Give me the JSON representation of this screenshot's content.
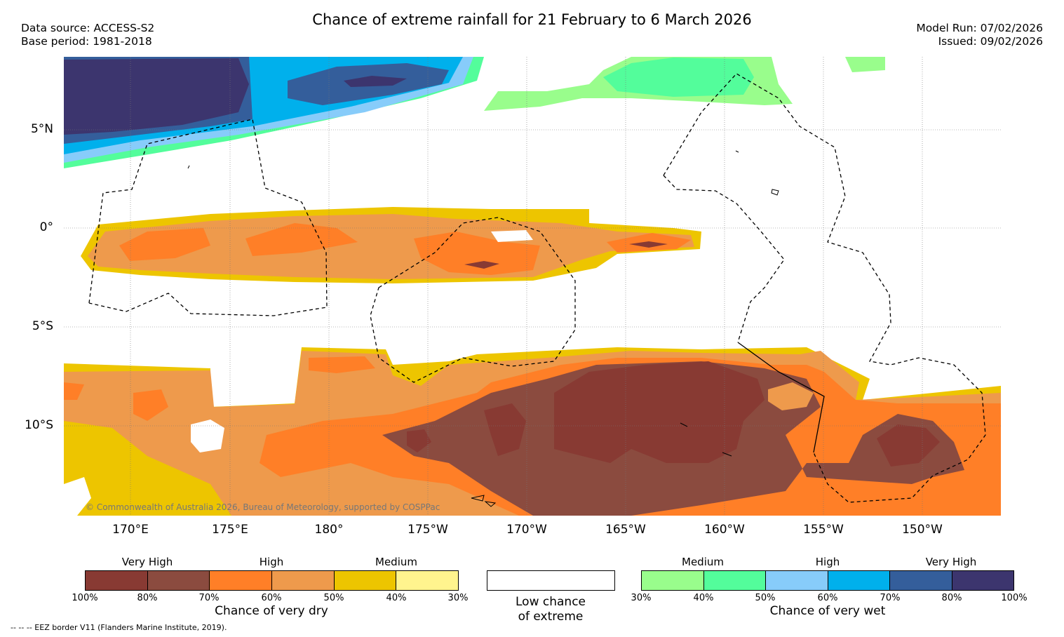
{
  "title": "Chance of extreme rainfall for 21 February to 6 March 2026",
  "meta_left": {
    "line1": "Data source: ACCESS-S2",
    "line2": "Base period: 1981-2018"
  },
  "meta_right": {
    "line1": "Model Run: 07/02/2026",
    "line2": "Issued: 09/02/2026"
  },
  "map": {
    "lat_ticks": [
      "5°N",
      "0°",
      "5°S",
      "10°S"
    ],
    "lon_ticks": [
      "170°E",
      "175°E",
      "180°",
      "175°W",
      "170°W",
      "165°W",
      "160°W",
      "155°W",
      "150°W"
    ],
    "copyright": "© Commonwealth of Australia 2026, Bureau of Meteorology, supported by COSPPac"
  },
  "legend_dry": {
    "categories": [
      "Very High",
      "High",
      "Medium"
    ],
    "colors": [
      "#883a33",
      "#8b4b3f",
      "#ff7f27",
      "#ee9a4c",
      "#edc500",
      "#fff48e"
    ],
    "percents": [
      "100%",
      "80%",
      "70%",
      "60%",
      "50%",
      "40%",
      "30%"
    ],
    "caption": "Chance of very dry"
  },
  "legend_low": {
    "line1": "Low chance",
    "line2": "of extreme",
    "color": "#ffffff"
  },
  "legend_wet": {
    "categories": [
      "Medium",
      "High",
      "Very High"
    ],
    "colors": [
      "#99fd8c",
      "#53fd9b",
      "#87ccfa",
      "#00b0ec",
      "#345e9b",
      "#3c356e"
    ],
    "percents": [
      "30%",
      "40%",
      "50%",
      "60%",
      "70%",
      "80%",
      "100%"
    ],
    "caption": "Chance of very wet"
  },
  "eez_note": "--  --  -- EEZ border V11 (Flanders Marine Institute, 2019)."
}
